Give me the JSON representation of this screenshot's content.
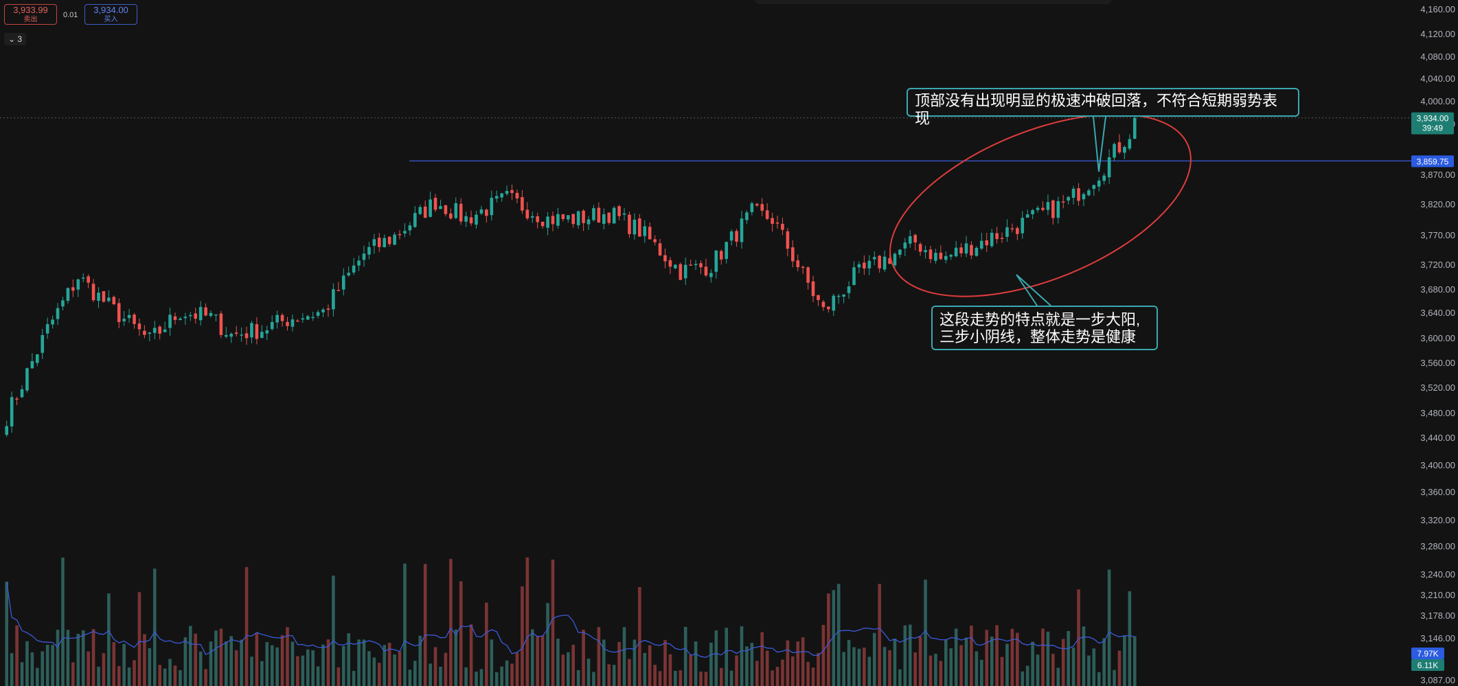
{
  "header": {
    "sell_price": "3,933.99",
    "sell_label": "卖出",
    "spread": "0.01",
    "buy_price": "3,934.00",
    "buy_label": "买入",
    "collapse_count": "3"
  },
  "annotations": {
    "top": "顶部没有出现明显的极速冲破回落，不符合短期弱势表现",
    "bottom_line1": "这段走势的特点就是一步大阳,",
    "bottom_line2": "三步小阴线，整体走势是健康"
  },
  "colors": {
    "background": "#131313",
    "up": "#26a69a",
    "down": "#ef5350",
    "ma_line": "#3b5bdb",
    "annotation_border": "#3aa9b2",
    "ellipse": "#e03c3c"
  },
  "chart_data": {
    "type": "candlestick",
    "price_axis": {
      "ticks": [
        "4,160.00",
        "4,120.00",
        "4,080.00",
        "4,040.00",
        "4,000.00",
        "3,960.00",
        "3,870.00",
        "3,820.00",
        "3,770.00",
        "3,720.00",
        "3,680.00",
        "3,640.00",
        "3,600.00",
        "3,560.00",
        "3,520.00",
        "3,480.00",
        "3,440.00",
        "3,400.00",
        "3,360.00",
        "3,320.00",
        "3,280.00",
        "3,240.00",
        "3,210.00",
        "3,178.00",
        "3,146.00",
        "3,087.00"
      ]
    },
    "current_price": {
      "value": 3934.0,
      "label": "3,934.00",
      "countdown": "39:49"
    },
    "horizontal_line": {
      "value": 3859.75,
      "label": "3,859.75"
    },
    "volume_labels": {
      "current": "7.97K",
      "ma": "6.11K"
    },
    "candle_count": 222,
    "anchors": [
      [
        0,
        3420
      ],
      [
        8,
        3570
      ],
      [
        14,
        3660
      ],
      [
        20,
        3610
      ],
      [
        28,
        3550
      ],
      [
        34,
        3600
      ],
      [
        40,
        3590
      ],
      [
        44,
        3560
      ],
      [
        50,
        3570
      ],
      [
        56,
        3590
      ],
      [
        62,
        3600
      ],
      [
        70,
        3700
      ],
      [
        76,
        3730
      ],
      [
        84,
        3790
      ],
      [
        90,
        3760
      ],
      [
        98,
        3795
      ],
      [
        106,
        3760
      ],
      [
        112,
        3760
      ],
      [
        118,
        3770
      ],
      [
        124,
        3740
      ],
      [
        132,
        3670
      ],
      [
        138,
        3680
      ],
      [
        146,
        3770
      ],
      [
        150,
        3760
      ],
      [
        160,
        3600
      ],
      [
        166,
        3660
      ],
      [
        178,
        3720
      ],
      [
        183,
        3690
      ],
      [
        196,
        3740
      ],
      [
        208,
        3790
      ],
      [
        214,
        3840
      ],
      [
        222,
        3930
      ]
    ]
  }
}
